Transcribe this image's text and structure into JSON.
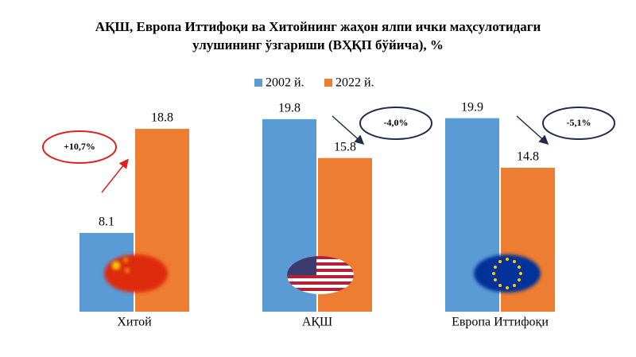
{
  "chart_data": {
    "type": "bar",
    "title": [
      "АҚШ, Европа Иттифоқи ва Хитойнинг жаҳон ялпи ички маҳсулотидаги",
      "улушининг ўзгариши (ВҲҚП бўйича), %"
    ],
    "categories": [
      "Хитой",
      "АҚШ",
      "Европа Иттифоқи"
    ],
    "series": [
      {
        "name": "2002 й.",
        "color": "#5b9bd5",
        "values": [
          8.1,
          19.8,
          19.9
        ]
      },
      {
        "name": "2022 й.",
        "color": "#ed7d31",
        "values": [
          18.8,
          15.8,
          14.8
        ]
      }
    ],
    "annotations": [
      "+10,7%",
      "-4,0%",
      "-5,1%"
    ],
    "ylim": [
      0,
      20
    ],
    "legend": "top"
  }
}
